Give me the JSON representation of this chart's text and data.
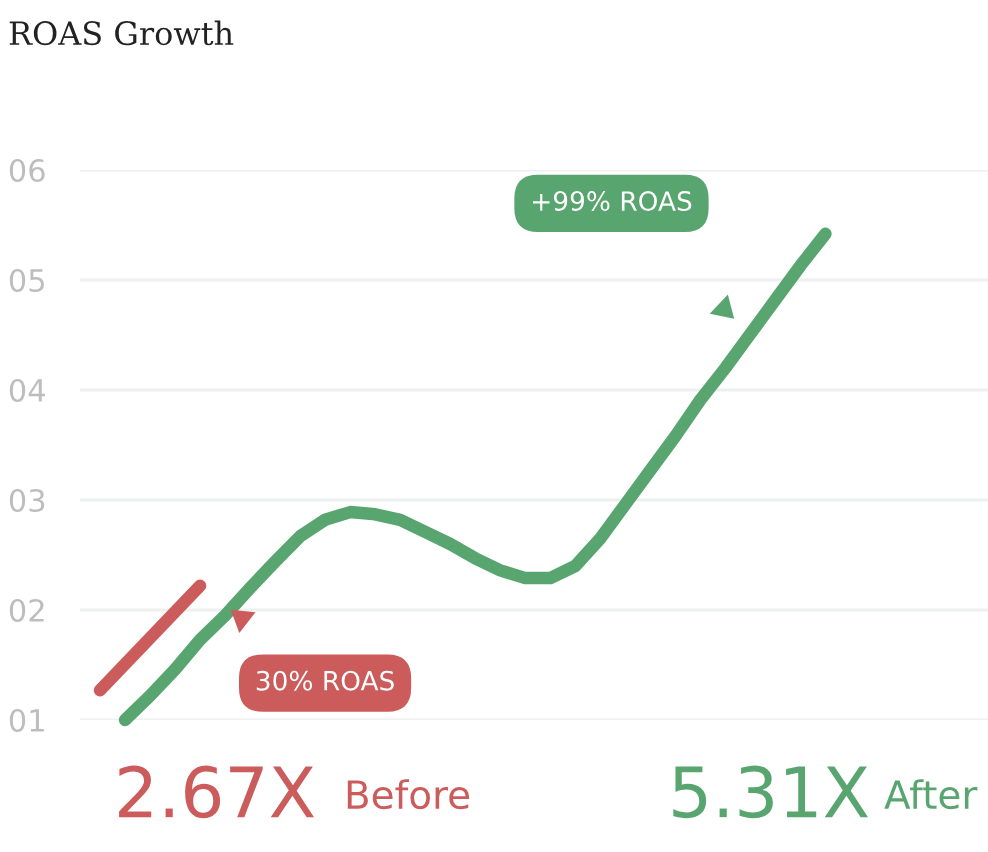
{
  "chart_data": {
    "type": "line",
    "title": "ROAS Growth",
    "categories": [
      null,
      null,
      null,
      null,
      null,
      null,
      null,
      null,
      null,
      null,
      null,
      null,
      null,
      null,
      null,
      null,
      null,
      null,
      null,
      null,
      null,
      null,
      null,
      null,
      null,
      null,
      null,
      null,
      null,
      null
    ],
    "series": [
      {
        "color": "#cc5c5c",
        "values": [
          1.27,
          null,
          null,
          null,
          2.22,
          null,
          null,
          null,
          null,
          null,
          null,
          null,
          null,
          null,
          null,
          null,
          null,
          null,
          null,
          null,
          null,
          null,
          null,
          null,
          null,
          null,
          null,
          null,
          null,
          null
        ]
      },
      {
        "color": "#58a56f",
        "values": [
          null,
          1.0,
          1.22,
          1.46,
          1.73,
          1.95,
          2.2,
          2.44,
          2.67,
          2.82,
          2.89,
          2.87,
          2.82,
          2.71,
          2.6,
          2.47,
          2.36,
          2.29,
          2.29,
          2.4,
          2.65,
          2.96,
          3.27,
          3.58,
          3.91,
          4.2,
          4.51,
          4.82,
          5.13,
          5.42
        ]
      }
    ],
    "ylim": [
      1,
      6
    ],
    "yticks": [
      {
        "value": 1,
        "label": "01"
      },
      {
        "value": 2,
        "label": "02"
      },
      {
        "value": 3,
        "label": "03"
      },
      {
        "value": 4,
        "label": "04"
      },
      {
        "value": 5,
        "label": "05"
      },
      {
        "value": 6,
        "label": "06"
      }
    ],
    "tick_labels": "y",
    "grid": "y",
    "marker": "none",
    "line_style": "solid",
    "annotations": [
      "+99% ROAS",
      "30% ROAS",
      "2.67X",
      "Before",
      "5.31X",
      "After"
    ]
  }
}
